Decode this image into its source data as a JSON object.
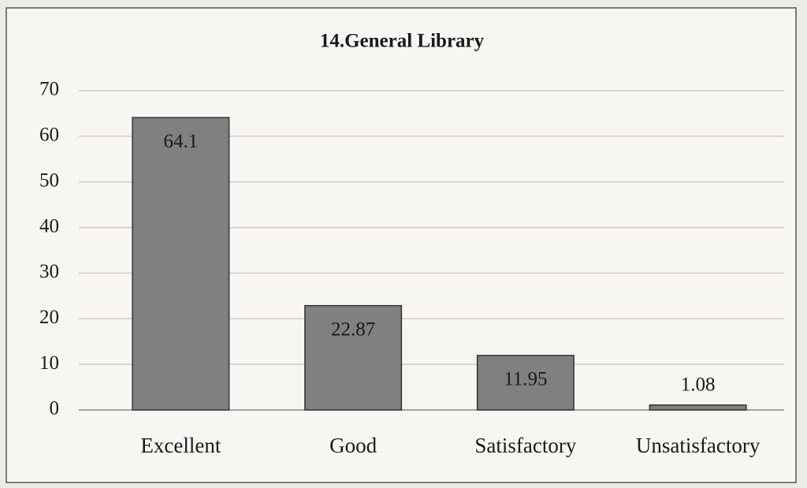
{
  "chart_data": {
    "type": "bar",
    "title": "14.General Library",
    "categories": [
      "Excellent",
      "Good",
      "Satisfactory",
      "Unsatisfactory"
    ],
    "values": [
      64.1,
      22.87,
      11.95,
      1.08
    ],
    "color": "#808080",
    "ylim": [
      0,
      70
    ],
    "yticks": [
      0,
      10,
      20,
      30,
      40,
      50,
      60,
      70
    ],
    "grid": true
  }
}
